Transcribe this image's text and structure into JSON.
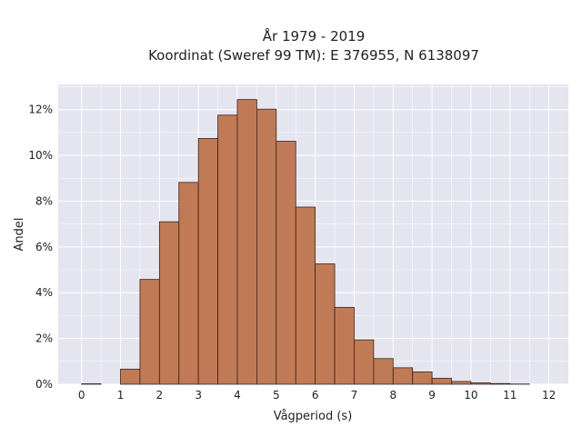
{
  "chart_data": {
    "type": "bar",
    "title_lines": [
      "År 1979 - 2019",
      "Koordinat (Sweref 99 TM): E 376955, N 6138097"
    ],
    "xlabel": "Vågperiod (s)",
    "ylabel": "Andel",
    "bin_width": 0.5,
    "x_start": 0,
    "values": [
      0.0002,
      0.0,
      0.0066,
      0.0458,
      0.071,
      0.0882,
      0.1074,
      0.1176,
      0.1244,
      0.1202,
      0.1062,
      0.0774,
      0.0526,
      0.0336,
      0.0194,
      0.0112,
      0.0072,
      0.0054,
      0.0026,
      0.0012,
      0.0006,
      0.0003,
      0.0001
    ],
    "xlim": [
      -0.6,
      12.5
    ],
    "ylim": [
      0,
      0.131
    ],
    "x_ticks": [
      0,
      1,
      2,
      3,
      4,
      5,
      6,
      7,
      8,
      9,
      10,
      11,
      12
    ],
    "x_tick_labels": [
      "0",
      "1",
      "2",
      "3",
      "4",
      "5",
      "6",
      "7",
      "8",
      "9",
      "10",
      "11",
      "12"
    ],
    "y_ticks": [
      0,
      0.02,
      0.04,
      0.06,
      0.08,
      0.1,
      0.12
    ],
    "y_tick_labels": [
      "0%",
      "2%",
      "4%",
      "6%",
      "8%",
      "10%",
      "12%"
    ],
    "grid": true,
    "colors": {
      "bar_fill": "#c07a56",
      "bar_edge": "#3b2518",
      "plot_bg": "#e5e5f0",
      "grid": "#ffffff"
    }
  }
}
